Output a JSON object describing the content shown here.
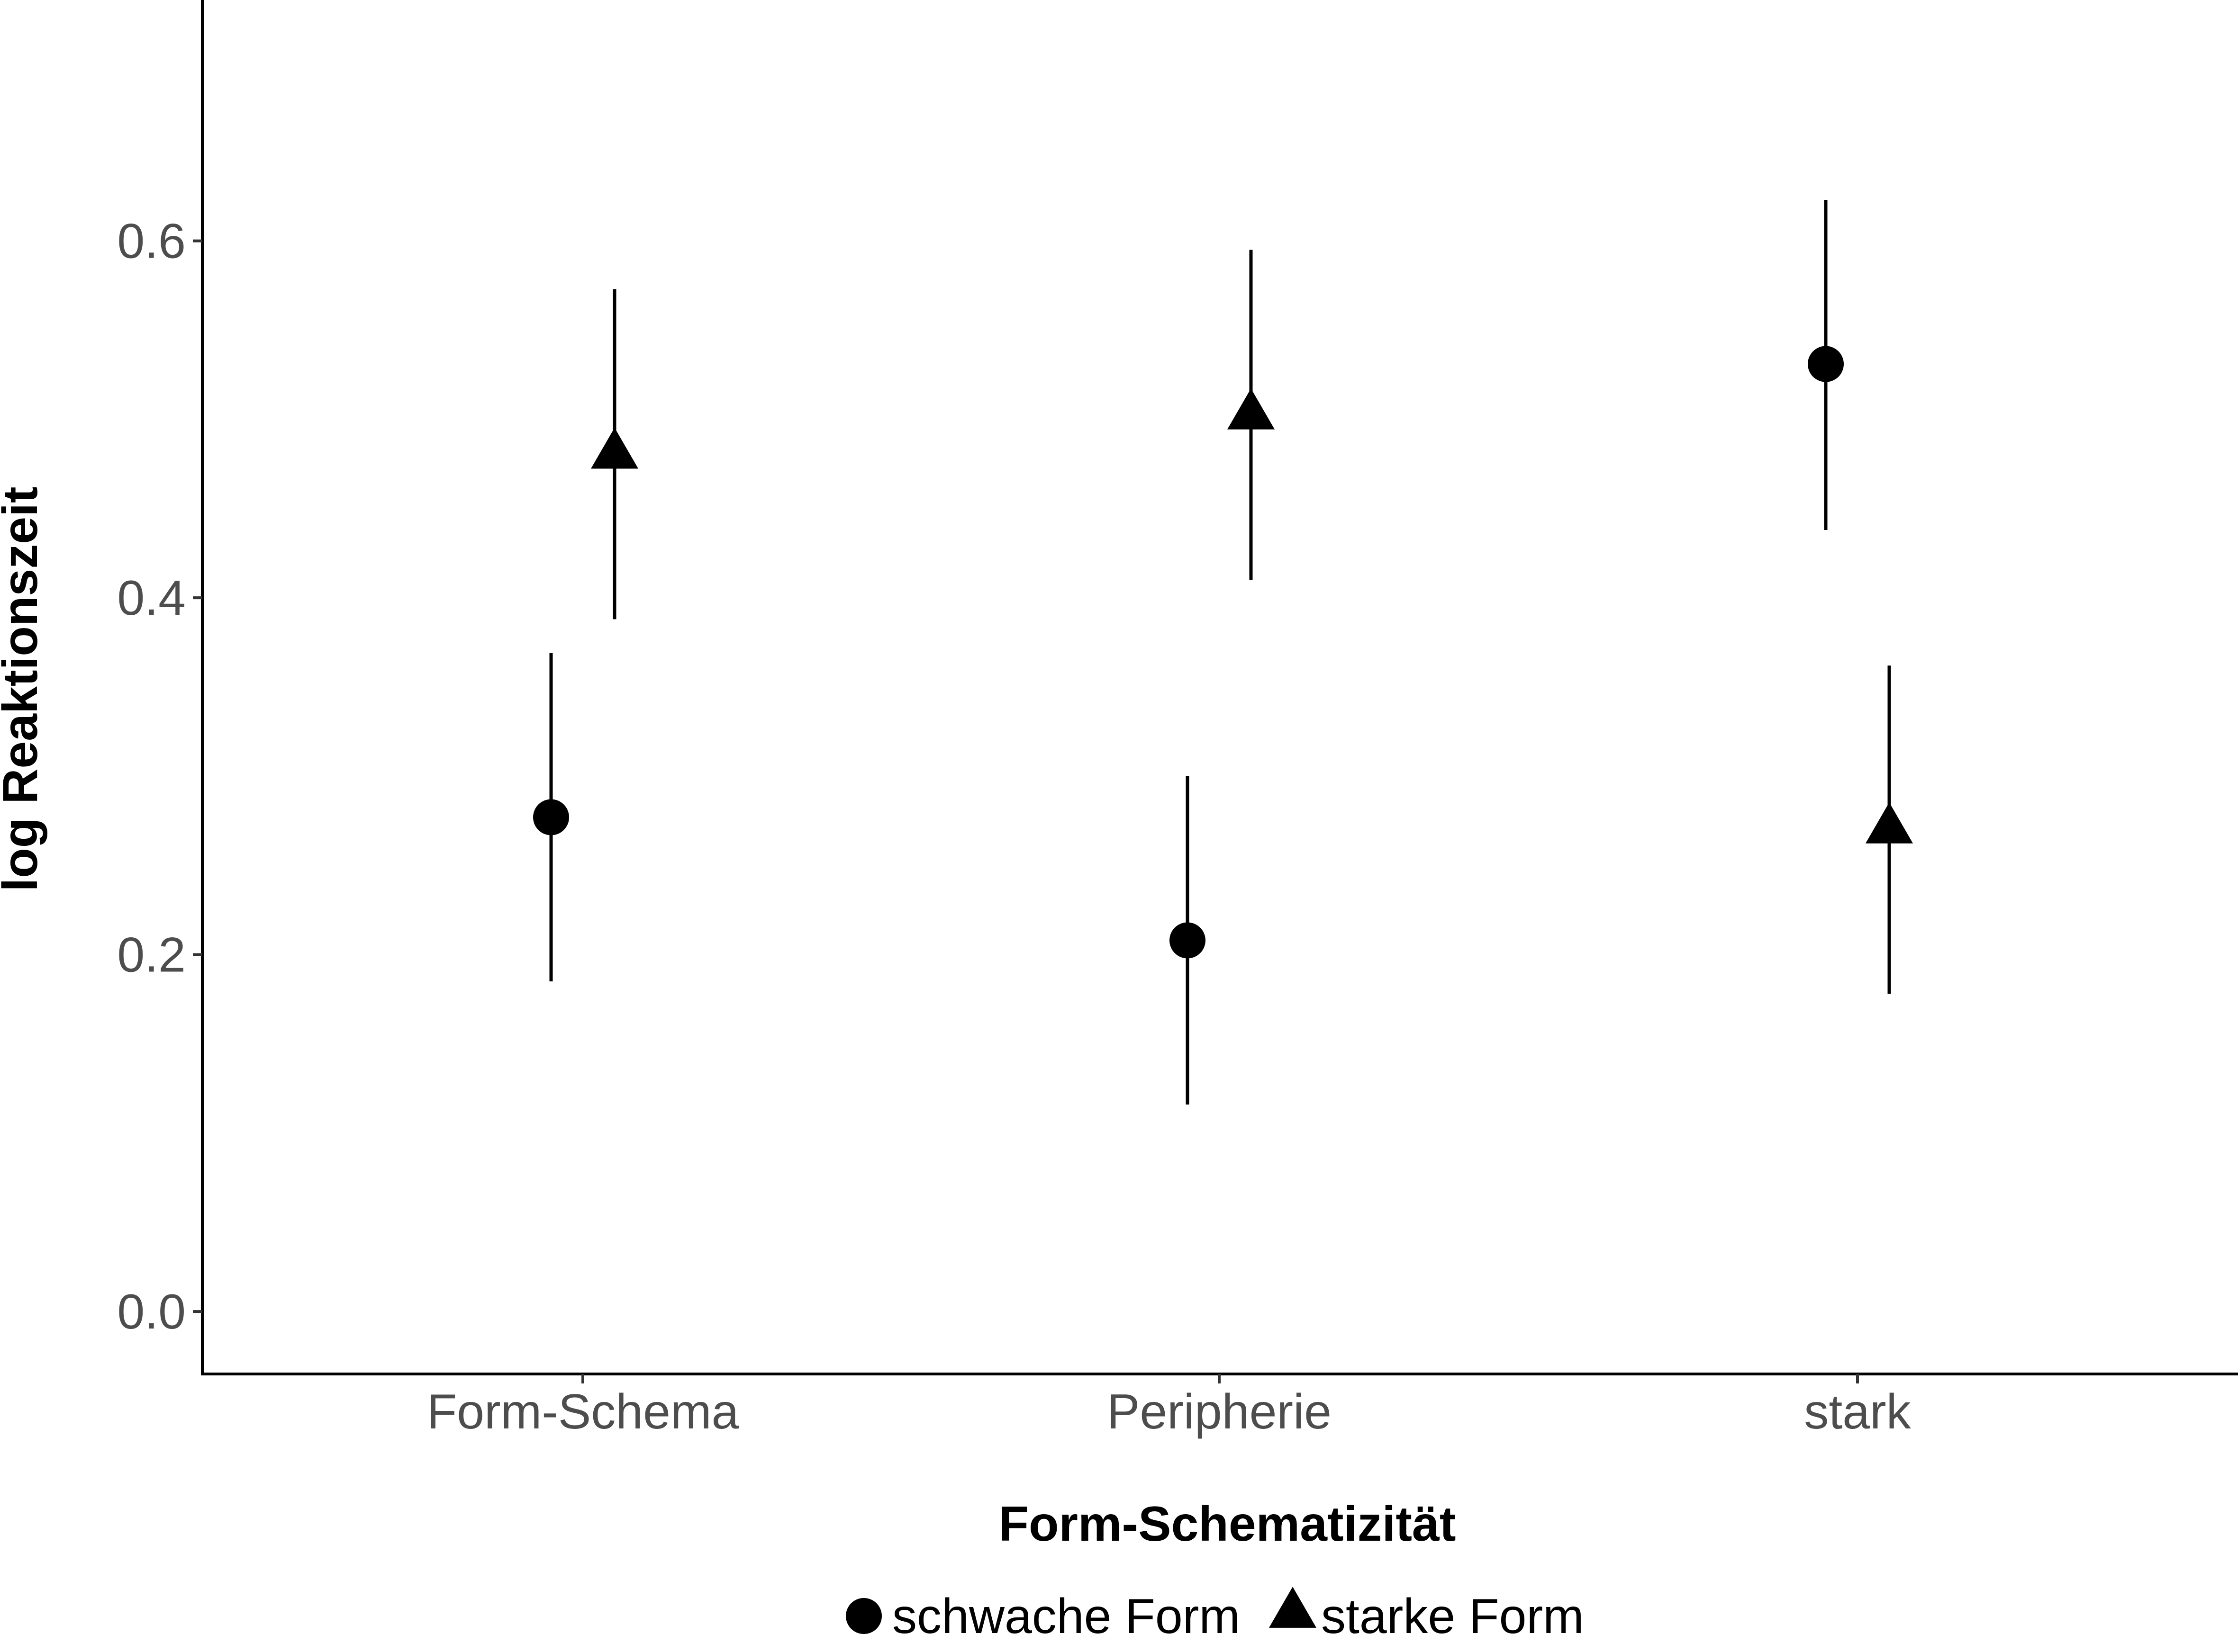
{
  "chart_data": {
    "type": "scatter",
    "title": "",
    "xlabel": "Form-Schematizität",
    "ylabel": "log Reaktionszeit",
    "categories": [
      "Form-Schema",
      "Peripherie",
      "stark"
    ],
    "ylim": [
      -0.035,
      0.735
    ],
    "yticks": [
      0.0,
      0.2,
      0.4,
      0.6
    ],
    "ytick_labels": [
      "0.0",
      "0.2",
      "0.4",
      "0.6"
    ],
    "grid": false,
    "legend_position": "bottom",
    "error_bars": true,
    "series": [
      {
        "name": "schwache Form",
        "marker": "circle",
        "values": [
          0.277,
          0.208,
          0.531
        ],
        "lower": [
          0.185,
          0.116,
          0.438
        ],
        "upper": [
          0.369,
          0.3,
          0.623
        ]
      },
      {
        "name": "starke Form",
        "marker": "triangle",
        "values": [
          0.48,
          0.502,
          0.27
        ],
        "lower": [
          0.388,
          0.41,
          0.178
        ],
        "upper": [
          0.573,
          0.595,
          0.362
        ]
      }
    ],
    "colors": {
      "marks": "#000000",
      "tick_text": "#4d4d4d",
      "axis": "#000000"
    }
  }
}
